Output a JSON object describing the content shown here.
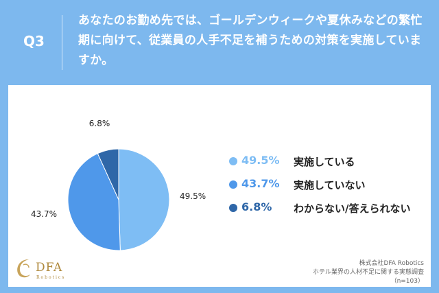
{
  "header": {
    "q_label": "Q3",
    "question": "あなたのお勤め先では、ゴールデンウィークや夏休みなどの繁忙期に向けて、従業員の人手不足を補うための対策を実施していますか。"
  },
  "chart_data": {
    "type": "pie",
    "slices": [
      {
        "label": "実施している",
        "value": 49.5,
        "display": "49.5%",
        "color": "#7ebdf4"
      },
      {
        "label": "実施していない",
        "value": 43.7,
        "display": "43.7%",
        "color": "#4f98ea"
      },
      {
        "label": "わからない/答えられない",
        "value": 6.8,
        "display": "6.8%",
        "color": "#2f67a8"
      }
    ],
    "legend_placement": "right"
  },
  "logo": {
    "text": "DFA",
    "sub": "Robotics"
  },
  "source": {
    "line1": "株式会社DFA Robotics",
    "line2": "ホテル業界の人材不足に関する実態調査",
    "line3": "（n=103）"
  }
}
